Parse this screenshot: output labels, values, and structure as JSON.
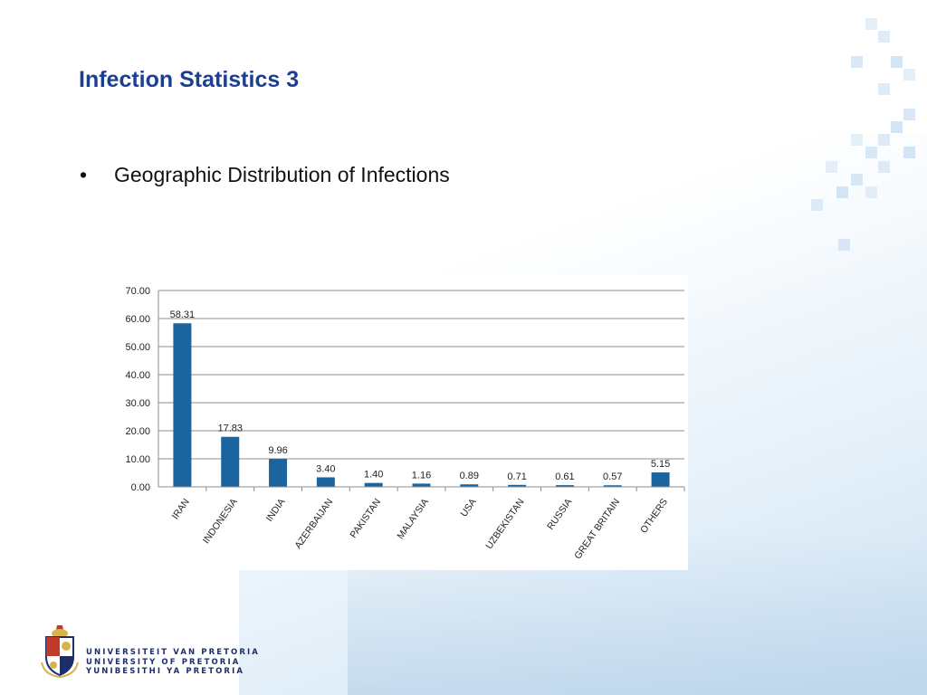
{
  "slide": {
    "title": "Infection Statistics 3",
    "bullet_symbol": "•",
    "bullet_text": "Geographic Distribution of Infections"
  },
  "footer": {
    "university_names": [
      "UNIVERSITEIT VAN PRETORIA",
      "UNIVERSITY OF PRETORIA",
      "YUNIBESITHI YA PRETORIA"
    ]
  },
  "colors": {
    "title": "#1c3f94",
    "bar": "#1a64a0",
    "decor_squares": "#cfe1f3"
  },
  "chart_data": {
    "type": "bar",
    "categories": [
      "IRAN",
      "INDONESIA",
      "INDIA",
      "AZERBAIJAN",
      "PAKISTAN",
      "MALAYSIA",
      "USA",
      "UZBEKISTAN",
      "RUSSIA",
      "GREAT BRITAIN",
      "OTHERS"
    ],
    "values": [
      58.31,
      17.83,
      9.96,
      3.4,
      1.4,
      1.16,
      0.89,
      0.71,
      0.61,
      0.57,
      5.15
    ],
    "data_labels": [
      "58.31",
      "17.83",
      "9.96",
      "3.40",
      "1.40",
      "1.16",
      "0.89",
      "0.71",
      "0.61",
      "0.57",
      "5.15"
    ],
    "ylim": [
      0,
      70
    ],
    "yticks": [
      "0.00",
      "10.00",
      "20.00",
      "30.00",
      "40.00",
      "50.00",
      "60.00",
      "70.00"
    ],
    "grid": true,
    "legend": false
  }
}
